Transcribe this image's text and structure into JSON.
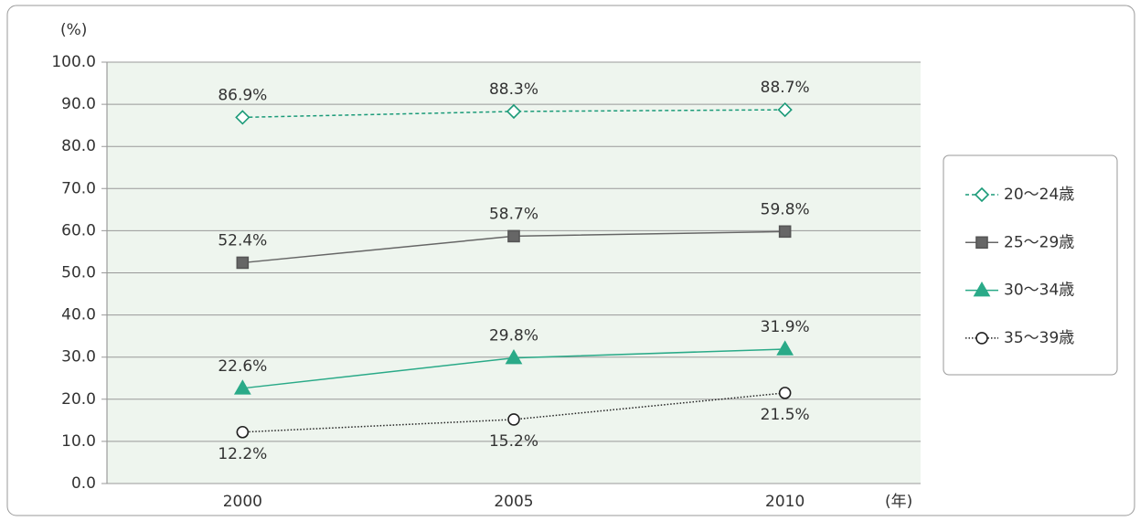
{
  "chart_data": {
    "type": "line",
    "y_unit_label": "(%)",
    "x_unit_label": "(年)",
    "categories": [
      "2000",
      "2005",
      "2010"
    ],
    "ylim": [
      0,
      100
    ],
    "yticks": [
      {
        "value": 0,
        "label": "0.0"
      },
      {
        "value": 10,
        "label": "10.0"
      },
      {
        "value": 20,
        "label": "20.0"
      },
      {
        "value": 30,
        "label": "30.0"
      },
      {
        "value": 40,
        "label": "40.0"
      },
      {
        "value": 50,
        "label": "50.0"
      },
      {
        "value": 60,
        "label": "60.0"
      },
      {
        "value": 70,
        "label": "70.0"
      },
      {
        "value": 80,
        "label": "80.0"
      },
      {
        "value": 90,
        "label": "90.0"
      },
      {
        "value": 100,
        "label": "100.0"
      }
    ],
    "grid": true,
    "legend": "right",
    "series": [
      {
        "name": "20～24歳",
        "color": "#1a9a78",
        "line_style": "dashed",
        "marker": "diamond",
        "values": [
          86.9,
          88.3,
          88.7
        ],
        "value_labels": [
          "86.9%",
          "88.3%",
          "88.7%"
        ]
      },
      {
        "name": "25～29歳",
        "color": "#666666",
        "line_style": "solid",
        "marker": "square",
        "values": [
          52.4,
          58.7,
          59.8
        ],
        "value_labels": [
          "52.4%",
          "58.7%",
          "59.8%"
        ]
      },
      {
        "name": "30～34歳",
        "color": "#2aaa88",
        "line_style": "solid",
        "marker": "triangle",
        "values": [
          22.6,
          29.8,
          31.9
        ],
        "value_labels": [
          "22.6%",
          "29.8%",
          "31.9%"
        ]
      },
      {
        "name": "35～39歳",
        "color": "#222222",
        "line_style": "dotted",
        "marker": "circle",
        "values": [
          12.2,
          15.2,
          21.5
        ],
        "value_labels": [
          "12.2%",
          "15.2%",
          "21.5%"
        ]
      }
    ]
  }
}
